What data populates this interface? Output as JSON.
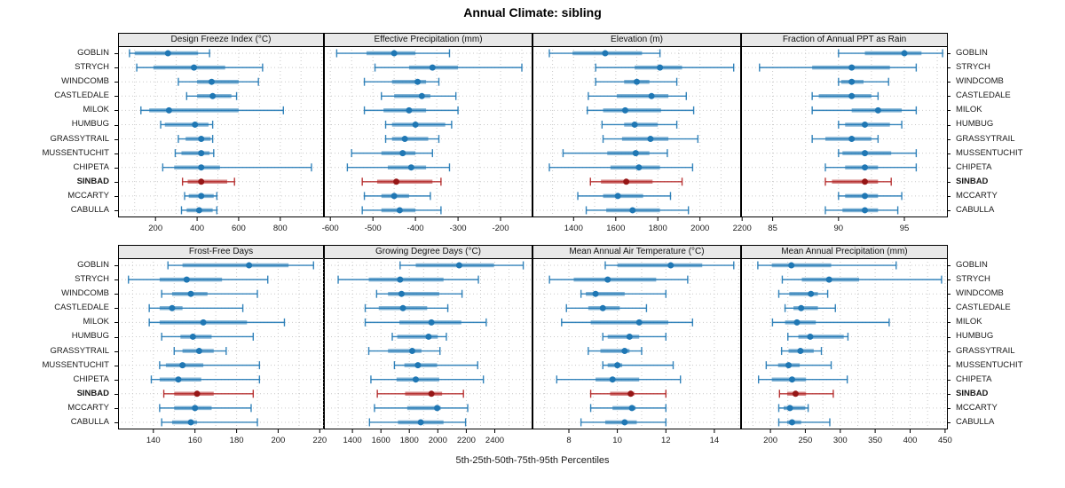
{
  "title": "Annual Climate: sibling",
  "caption": "5th-25th-50th-75th-95th Percentiles",
  "colors": {
    "series_blue": "#1f77b4",
    "highlight_red": "#b22222",
    "highlight_dot": "#961616",
    "strip_bg": "#e8e8e8",
    "grid": "#c9c9c9",
    "border": "#000000",
    "text": "#1a1a1a"
  },
  "sites": [
    "GOBLIN",
    "STRYCH",
    "WINDCOMB",
    "CASTLEDALE",
    "MILOK",
    "HUMBUG",
    "GRASSYTRAIL",
    "MUSSENTUCHIT",
    "CHIPETA",
    "SINBAD",
    "MCCARTY",
    "CABULLA"
  ],
  "highlight_site": "SINBAD",
  "chart_data": {
    "type": "errorbar-grid",
    "title": "Annual Climate: sibling",
    "xlabel": "5th-25th-50th-75th-95th Percentiles",
    "percentile_levels": [
      5,
      25,
      50,
      75,
      95
    ],
    "sites": [
      "GOBLIN",
      "STRYCH",
      "WINDCOMB",
      "CASTLEDALE",
      "MILOK",
      "HUMBUG",
      "GRASSYTRAIL",
      "MUSSENTUCHIT",
      "CHIPETA",
      "SINBAD",
      "MCCARTY",
      "CABULLA"
    ],
    "panels": [
      {
        "title": "Design Freeze Index (°C)",
        "row": 0,
        "col": 0,
        "xmin": 20,
        "xmax": 1010,
        "ticks": [
          200,
          400,
          600,
          800
        ],
        "grid_step": 100,
        "values": [
          [
            75,
            100,
            260,
            405,
            460
          ],
          [
            110,
            190,
            385,
            535,
            715
          ],
          [
            310,
            400,
            470,
            600,
            695
          ],
          [
            350,
            400,
            475,
            565,
            590
          ],
          [
            130,
            170,
            265,
            600,
            815
          ],
          [
            225,
            245,
            390,
            455,
            475
          ],
          [
            310,
            345,
            420,
            465,
            475
          ],
          [
            295,
            325,
            420,
            460,
            480
          ],
          [
            235,
            290,
            420,
            510,
            950
          ],
          [
            330,
            355,
            420,
            545,
            580
          ],
          [
            340,
            360,
            420,
            480,
            495
          ],
          [
            325,
            350,
            410,
            475,
            495
          ]
        ]
      },
      {
        "title": "Effective Precipitation (mm)",
        "row": 0,
        "col": 1,
        "xmin": -615,
        "xmax": -125,
        "ticks": [
          -600,
          -500,
          -400,
          -300,
          -200
        ],
        "grid_step": 50,
        "values": [
          [
            -585,
            -515,
            -450,
            -400,
            -320
          ],
          [
            -495,
            -415,
            -360,
            -300,
            -150
          ],
          [
            -520,
            -455,
            -395,
            -375,
            -345
          ],
          [
            -480,
            -450,
            -385,
            -365,
            -305
          ],
          [
            -520,
            -475,
            -415,
            -375,
            -300
          ],
          [
            -470,
            -455,
            -400,
            -330,
            -315
          ],
          [
            -470,
            -455,
            -425,
            -370,
            -345
          ],
          [
            -550,
            -480,
            -430,
            -400,
            -360
          ],
          [
            -560,
            -465,
            -410,
            -375,
            -320
          ],
          [
            -525,
            -490,
            -445,
            -360,
            -340
          ],
          [
            -520,
            -480,
            -450,
            -415,
            -365
          ],
          [
            -525,
            -480,
            -437,
            -400,
            -340
          ]
        ]
      },
      {
        "title": "Elevation (m)",
        "row": 0,
        "col": 2,
        "xmin": 1205,
        "xmax": 2195,
        "ticks": [
          1400,
          1600,
          1800,
          2000,
          2200
        ],
        "grid_step": 100,
        "values": [
          [
            1285,
            1395,
            1550,
            1725,
            1810
          ],
          [
            1505,
            1690,
            1810,
            1915,
            2160
          ],
          [
            1505,
            1640,
            1700,
            1760,
            1890
          ],
          [
            1470,
            1605,
            1770,
            1850,
            1935
          ],
          [
            1465,
            1540,
            1645,
            1815,
            1970
          ],
          [
            1535,
            1640,
            1690,
            1800,
            1890
          ],
          [
            1540,
            1630,
            1765,
            1850,
            1990
          ],
          [
            1350,
            1560,
            1695,
            1760,
            1845
          ],
          [
            1285,
            1575,
            1710,
            1810,
            1965
          ],
          [
            1480,
            1530,
            1650,
            1775,
            1915
          ],
          [
            1420,
            1540,
            1610,
            1730,
            1860
          ],
          [
            1460,
            1555,
            1680,
            1810,
            1945
          ]
        ]
      },
      {
        "title": "Fraction of Annual PPT as Rain",
        "row": 0,
        "col": 3,
        "xmin": 82.6,
        "xmax": 98.3,
        "ticks": [
          85,
          90,
          95
        ],
        "grid_step": 2.5,
        "values": [
          [
            90,
            92,
            95,
            96.3,
            97.9
          ],
          [
            84,
            88,
            91,
            93.9,
            95.9
          ],
          [
            90,
            90.2,
            91,
            91.9,
            93.8
          ],
          [
            88,
            88.5,
            91,
            92.5,
            93
          ],
          [
            88,
            91,
            93,
            94.8,
            95.9
          ],
          [
            90,
            90.5,
            92,
            93.9,
            94.8
          ],
          [
            88,
            89,
            91,
            92.5,
            93
          ],
          [
            90,
            90.3,
            92,
            94,
            95.9
          ],
          [
            89,
            90.5,
            92,
            93,
            95.9
          ],
          [
            89,
            89.5,
            92,
            93,
            94
          ],
          [
            90,
            90.5,
            92,
            93,
            94.8
          ],
          [
            89,
            90.3,
            92,
            93,
            94.5
          ]
        ]
      },
      {
        "title": "Frost-Free Days",
        "row": 1,
        "col": 0,
        "xmin": 123,
        "xmax": 222,
        "ticks": [
          140,
          160,
          180,
          200,
          220
        ],
        "grid_step": 10,
        "values": [
          [
            147,
            154,
            186,
            205,
            217
          ],
          [
            128,
            143,
            156,
            173,
            195
          ],
          [
            144,
            149,
            158,
            166,
            190
          ],
          [
            138,
            143,
            149,
            154,
            183
          ],
          [
            138,
            143,
            164,
            185,
            203
          ],
          [
            144,
            153,
            159,
            168,
            188
          ],
          [
            150,
            154,
            162,
            169,
            175
          ],
          [
            143,
            146,
            154,
            164,
            191
          ],
          [
            139,
            143,
            152,
            163,
            191
          ],
          [
            145,
            150,
            161,
            169,
            188
          ],
          [
            143,
            150,
            160,
            168,
            187
          ],
          [
            144,
            149,
            158,
            161,
            190
          ]
        ]
      },
      {
        "title": "Growing Degree Days (°C)",
        "row": 1,
        "col": 1,
        "xmin": 1200,
        "xmax": 2665,
        "ticks": [
          1400,
          1600,
          1800,
          2000,
          2200,
          2400
        ],
        "grid_step": 100,
        "values": [
          [
            1735,
            1845,
            2150,
            2395,
            2600
          ],
          [
            1300,
            1515,
            1735,
            2040,
            2285
          ],
          [
            1570,
            1650,
            1745,
            2010,
            2170
          ],
          [
            1490,
            1585,
            1755,
            1925,
            2070
          ],
          [
            1490,
            1730,
            1955,
            2165,
            2340
          ],
          [
            1680,
            1715,
            1935,
            2000,
            2060
          ],
          [
            1515,
            1650,
            1820,
            1885,
            2015
          ],
          [
            1695,
            1765,
            1860,
            1995,
            2280
          ],
          [
            1530,
            1710,
            1845,
            2010,
            2320
          ],
          [
            1575,
            1770,
            1955,
            2030,
            2180
          ],
          [
            1555,
            1785,
            1995,
            2020,
            2210
          ],
          [
            1520,
            1720,
            1880,
            2040,
            2195
          ]
        ]
      },
      {
        "title": "Mean Annual Air Temperature (°C)",
        "row": 1,
        "col": 2,
        "xmin": 6.5,
        "xmax": 15.1,
        "ticks": [
          8,
          10,
          12,
          14
        ],
        "grid_step": 1,
        "values": [
          [
            9.5,
            10,
            12.2,
            13.5,
            14.8
          ],
          [
            7.2,
            8.2,
            9.6,
            11.6,
            12.9
          ],
          [
            8.5,
            8.7,
            9.1,
            10.3,
            12
          ],
          [
            7.9,
            8.8,
            9.4,
            10.1,
            11.2
          ],
          [
            7.7,
            8.9,
            10.9,
            12.1,
            13.1
          ],
          [
            9.4,
            9.6,
            10.5,
            10.9,
            12
          ],
          [
            8.8,
            9.3,
            10.3,
            10.5,
            11
          ],
          [
            9.4,
            9.6,
            10,
            10.2,
            12.3
          ],
          [
            7.5,
            9.1,
            9.8,
            10.9,
            12.6
          ],
          [
            8.9,
            9.7,
            10.55,
            10.7,
            12
          ],
          [
            8.9,
            9.8,
            10.6,
            10.75,
            12
          ],
          [
            8.5,
            9.5,
            10.3,
            10.8,
            12
          ]
        ]
      },
      {
        "title": "Mean Annual Precipitation (mm)",
        "row": 1,
        "col": 3,
        "xmin": 158,
        "xmax": 454,
        "ticks": [
          200,
          250,
          300,
          350,
          400,
          450
        ],
        "grid_step": 25,
        "values": [
          [
            182,
            202,
            230,
            287,
            380
          ],
          [
            217,
            245,
            284,
            327,
            445
          ],
          [
            212,
            227,
            258,
            268,
            282
          ],
          [
            221,
            233,
            244,
            268,
            293
          ],
          [
            203,
            221,
            238,
            265,
            370
          ],
          [
            225,
            240,
            257,
            305,
            311
          ],
          [
            216,
            226,
            243,
            262,
            273
          ],
          [
            194,
            211,
            226,
            242,
            287
          ],
          [
            183,
            202,
            231,
            251,
            310
          ],
          [
            213,
            224,
            236,
            251,
            290
          ],
          [
            212,
            219,
            228,
            250,
            254
          ],
          [
            212,
            224,
            231,
            244,
            285
          ]
        ]
      }
    ]
  }
}
